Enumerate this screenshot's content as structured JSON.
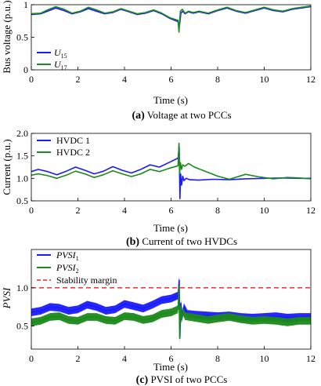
{
  "chart_data": [
    {
      "id": "a",
      "type": "line",
      "caption": {
        "tag": "(a)",
        "text": "Voltage at two PCCs"
      },
      "xlabel": "Time (s)",
      "ylabel": "Bus voltage (p.u.)",
      "xlim": [
        0,
        12
      ],
      "ylim": [
        0,
        1
      ],
      "xticks": [
        0,
        2,
        4,
        6,
        8,
        10,
        12
      ],
      "yticks": [
        0,
        0.5,
        1
      ],
      "ytick_labels": [
        "0",
        "0.5",
        "1"
      ],
      "grid": false,
      "legend_position": "lower-left",
      "series": [
        {
          "name_main": "U",
          "name_sub": "15",
          "color": "#1a1aff",
          "x": [
            0,
            0.4,
            0.7,
            1.05,
            1.4,
            1.75,
            2.1,
            2.45,
            2.8,
            3.15,
            3.5,
            3.85,
            4.2,
            4.55,
            4.9,
            5.25,
            5.6,
            5.95,
            6.3,
            6.35,
            6.38,
            6.42,
            6.5,
            6.6,
            6.75,
            6.95,
            7.2,
            7.6,
            8.0,
            8.4,
            8.8,
            9.2,
            9.6,
            10.0,
            10.4,
            10.8,
            11.2,
            11.6,
            12.0
          ],
          "y": [
            0.85,
            0.86,
            0.9,
            0.95,
            0.91,
            0.86,
            0.89,
            0.94,
            0.9,
            0.86,
            0.88,
            0.93,
            0.89,
            0.85,
            0.87,
            0.91,
            0.86,
            0.79,
            0.74,
            0.66,
            0.73,
            0.87,
            0.9,
            0.86,
            0.89,
            0.87,
            0.89,
            0.86,
            0.91,
            0.95,
            0.9,
            0.87,
            0.91,
            0.95,
            0.91,
            0.89,
            0.93,
            0.95,
            0.97
          ]
        },
        {
          "name_main": "U",
          "name_sub": "17",
          "color": "#1a8a1a",
          "x": [
            0,
            0.4,
            0.7,
            1.05,
            1.4,
            1.75,
            2.1,
            2.45,
            2.8,
            3.15,
            3.5,
            3.85,
            4.2,
            4.55,
            4.9,
            5.25,
            5.6,
            5.95,
            6.3,
            6.34,
            6.36,
            6.4,
            6.48,
            6.6,
            6.75,
            6.95,
            7.2,
            7.6,
            8.0,
            8.4,
            8.8,
            9.2,
            9.6,
            10.0,
            10.4,
            10.8,
            11.2,
            11.6,
            12.0
          ],
          "y": [
            0.86,
            0.87,
            0.92,
            0.97,
            0.93,
            0.87,
            0.9,
            0.96,
            0.92,
            0.87,
            0.89,
            0.94,
            0.9,
            0.86,
            0.88,
            0.92,
            0.87,
            0.8,
            0.76,
            0.58,
            0.7,
            0.9,
            0.93,
            0.87,
            0.9,
            0.88,
            0.9,
            0.87,
            0.92,
            0.96,
            0.91,
            0.88,
            0.92,
            0.96,
            0.92,
            0.9,
            0.94,
            0.96,
            0.98
          ]
        }
      ]
    },
    {
      "id": "b",
      "type": "line",
      "caption": {
        "tag": "(b)",
        "text": "Current of two HVDCs"
      },
      "xlabel": "Time (s)",
      "ylabel": "Current (p.u.)",
      "xlim": [
        0,
        12
      ],
      "ylim": [
        0.5,
        2.0
      ],
      "xticks": [
        0,
        2,
        4,
        6,
        8,
        10,
        12
      ],
      "yticks": [
        0.5,
        1.0,
        1.5,
        2.0
      ],
      "ytick_labels": [
        "0.5",
        "1.0",
        "1.5",
        "2.0"
      ],
      "grid": false,
      "legend_position": "top-left",
      "series": [
        {
          "name_main": "HVDC 1",
          "name_sub": "",
          "color": "#1a1aff",
          "x": [
            0,
            0.3,
            0.7,
            1.1,
            1.5,
            1.9,
            2.3,
            2.7,
            3.1,
            3.5,
            3.9,
            4.3,
            4.7,
            5.1,
            5.5,
            5.9,
            6.3,
            6.35,
            6.38,
            6.41,
            6.45,
            6.5,
            6.55,
            6.65,
            6.8,
            7.2,
            7.8,
            8.5,
            9.2,
            10.0,
            10.8,
            11.5,
            12.0
          ],
          "y": [
            1.15,
            1.2,
            1.15,
            1.08,
            1.16,
            1.25,
            1.18,
            1.1,
            1.16,
            1.26,
            1.18,
            1.12,
            1.2,
            1.3,
            1.25,
            1.35,
            1.45,
            1.7,
            0.55,
            1.1,
            0.85,
            1.05,
            0.95,
            1.0,
            0.97,
            0.96,
            0.98,
            0.97,
            0.99,
            1.0,
            1.01,
            1.0,
            1.0
          ]
        },
        {
          "name_main": "HVDC 2",
          "name_sub": "",
          "color": "#1a8a1a",
          "x": [
            0,
            0.3,
            0.7,
            1.1,
            1.5,
            1.9,
            2.3,
            2.7,
            3.1,
            3.5,
            3.9,
            4.3,
            4.7,
            5.1,
            5.5,
            5.9,
            6.3,
            6.34,
            6.37,
            6.4,
            6.45,
            6.5,
            6.6,
            6.75,
            7.0,
            7.5,
            8.0,
            8.5,
            9.2,
            9.8,
            10.4,
            11.0,
            11.5,
            12.0
          ],
          "y": [
            1.07,
            1.1,
            1.06,
            1.0,
            1.07,
            1.16,
            1.1,
            1.02,
            1.08,
            1.17,
            1.1,
            1.04,
            1.1,
            1.2,
            1.15,
            1.22,
            1.28,
            1.78,
            1.1,
            1.35,
            1.2,
            1.3,
            1.27,
            1.33,
            1.25,
            1.15,
            1.05,
            0.98,
            1.09,
            1.03,
            0.99,
            1.02,
            1.01,
            0.99
          ]
        }
      ]
    },
    {
      "id": "c",
      "type": "line",
      "caption": {
        "tag": "(c)",
        "text": "PVSI of two PCCs"
      },
      "xlabel": "Time (s)",
      "ylabel": "PVSI",
      "xlim": [
        0,
        12
      ],
      "ylim": [
        0.2,
        1.5
      ],
      "xticks": [
        0,
        2,
        4,
        6,
        8,
        10,
        12
      ],
      "yticks": [
        0.5,
        1.0
      ],
      "ytick_labels": [
        "0.5",
        "1.0"
      ],
      "grid": false,
      "legend_position": "top-left",
      "series": [
        {
          "name_main": "PVSI",
          "name_sub": "1",
          "color": "#1a1aff",
          "band": 0.05,
          "x": [
            0,
            0.4,
            0.8,
            1.2,
            1.6,
            2.0,
            2.4,
            2.8,
            3.2,
            3.6,
            4.0,
            4.4,
            4.8,
            5.2,
            5.6,
            6.0,
            6.3,
            6.35,
            6.38,
            6.42,
            6.48,
            6.55,
            6.7,
            7.0,
            7.5,
            8.0,
            8.5,
            9.0,
            9.5,
            10.0,
            10.5,
            11.0,
            11.5,
            12.0
          ],
          "y": [
            0.68,
            0.7,
            0.75,
            0.74,
            0.7,
            0.72,
            0.78,
            0.75,
            0.7,
            0.72,
            0.79,
            0.76,
            0.73,
            0.78,
            0.84,
            0.86,
            0.9,
            1.1,
            0.35,
            0.8,
            0.62,
            0.75,
            0.66,
            0.65,
            0.64,
            0.63,
            0.64,
            0.62,
            0.61,
            0.62,
            0.63,
            0.61,
            0.62,
            0.62
          ]
        },
        {
          "name_main": "PVSI",
          "name_sub": "2",
          "color": "#1a8a1a",
          "band": 0.05,
          "x": [
            0,
            0.4,
            0.8,
            1.2,
            1.6,
            2.0,
            2.4,
            2.8,
            3.2,
            3.6,
            4.0,
            4.4,
            4.8,
            5.2,
            5.6,
            6.0,
            6.3,
            6.34,
            6.37,
            6.4,
            6.45,
            6.5,
            6.6,
            6.8,
            7.2,
            7.6,
            8.0,
            8.5,
            9.0,
            9.5,
            10.0,
            10.5,
            11.0,
            11.5,
            12.0
          ],
          "y": [
            0.55,
            0.57,
            0.62,
            0.63,
            0.58,
            0.57,
            0.62,
            0.62,
            0.58,
            0.57,
            0.63,
            0.62,
            0.58,
            0.6,
            0.66,
            0.68,
            0.72,
            1.02,
            0.34,
            0.76,
            0.58,
            0.7,
            0.63,
            0.62,
            0.6,
            0.58,
            0.6,
            0.62,
            0.59,
            0.57,
            0.58,
            0.57,
            0.55,
            0.57,
            0.57
          ]
        },
        {
          "name_main": "Stability margin",
          "name_sub": "",
          "color": "#e8202a",
          "dashed": true,
          "x": [
            0,
            12
          ],
          "y": [
            1.0,
            1.0
          ]
        }
      ]
    }
  ]
}
